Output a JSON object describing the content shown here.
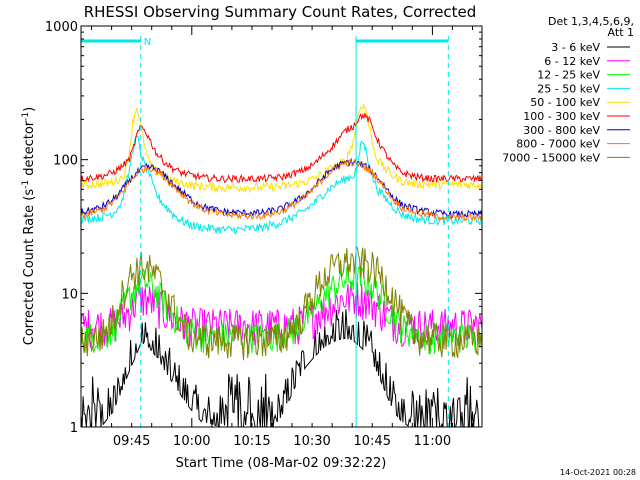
{
  "chart_data": {
    "type": "line",
    "title": "RHESSI Observing Summary Count Rates, Corrected",
    "xlabel": "Start Time (08-Mar-02 09:32:22)",
    "ylabel_main": "Corrected Count Rate (s",
    "ylabel_sup1": "-1",
    "ylabel_mid": " detector",
    "ylabel_sup2": "-1",
    "ylabel_end": ")",
    "x_range_minutes": [
      0,
      100
    ],
    "ylim": [
      1,
      1000
    ],
    "yscale": "log",
    "xticks": [
      {
        "minute": 12.63,
        "label": "09:45"
      },
      {
        "minute": 27.63,
        "label": "10:00"
      },
      {
        "minute": 42.63,
        "label": "10:15"
      },
      {
        "minute": 57.63,
        "label": "10:30"
      },
      {
        "minute": 72.63,
        "label": "10:45"
      },
      {
        "minute": 87.63,
        "label": "11:00"
      }
    ],
    "yticks": [
      {
        "value": 1,
        "label": "1"
      },
      {
        "value": 10,
        "label": "10"
      },
      {
        "value": 100,
        "label": "100"
      },
      {
        "value": 1000,
        "label": "1000"
      }
    ],
    "legend_header": [
      "Det 1,3,4,5,6,9,",
      "Att 1"
    ],
    "legend_position": "right",
    "series": [
      {
        "name": "3 - 6 keV",
        "color": "#000000",
        "x": [
          0,
          5,
          8,
          10,
          12,
          14,
          15,
          17,
          19,
          21,
          24,
          27,
          30,
          35,
          40,
          45,
          48,
          50,
          52,
          54,
          56,
          58,
          60,
          62,
          64,
          66,
          68,
          70,
          72,
          74,
          76,
          78,
          80,
          82,
          84,
          86,
          88,
          90,
          92,
          96,
          100
        ],
        "y": [
          1,
          1,
          1.3,
          1.8,
          2.6,
          3.6,
          4.3,
          3.9,
          3.3,
          2.6,
          1.9,
          1.4,
          1.1,
          1,
          1,
          1,
          1,
          1.2,
          1.6,
          2.2,
          2.8,
          3.3,
          3.8,
          4.2,
          4.5,
          4.6,
          4.4,
          3.9,
          3.3,
          2.5,
          1.8,
          1.3,
          1.1,
          1,
          1,
          1,
          1,
          1,
          1,
          1,
          1
        ]
      },
      {
        "name": "6 - 12 keV",
        "color": "#ff00ff",
        "x": [
          0,
          8,
          10,
          12,
          14,
          15,
          17,
          19,
          21,
          24,
          27,
          30,
          35,
          40,
          45,
          50,
          54,
          58,
          60,
          62,
          64,
          66,
          68,
          70,
          72,
          74,
          76,
          78,
          80,
          84,
          88,
          92,
          96,
          100
        ],
        "y": [
          5.8,
          5.9,
          6.4,
          7.5,
          8.8,
          9.3,
          9,
          8.2,
          7.2,
          6.3,
          5.9,
          5.8,
          5.8,
          5.8,
          5.8,
          5.8,
          6,
          6.8,
          7.4,
          8.1,
          8.8,
          9.3,
          9.5,
          9.4,
          8.8,
          7.9,
          7,
          6.3,
          6,
          5.8,
          5.8,
          5.8,
          5.8,
          5.8
        ]
      },
      {
        "name": "12 - 25 keV",
        "color": "#00ff00",
        "x": [
          0,
          6,
          8,
          10,
          12,
          14,
          15,
          17,
          19,
          21,
          24,
          27,
          30,
          35,
          40,
          45,
          50,
          54,
          58,
          60,
          62,
          64,
          66,
          68,
          70,
          72,
          74,
          76,
          78,
          80,
          84,
          88,
          92,
          96,
          100
        ],
        "y": [
          4.8,
          4.9,
          5.6,
          7.2,
          9.5,
          11.5,
          12.3,
          11.8,
          10.2,
          8.4,
          6.4,
          5.3,
          4.9,
          4.8,
          4.8,
          4.8,
          4.9,
          5.6,
          7.4,
          9,
          10.6,
          11.8,
          12.6,
          13,
          12.8,
          11.9,
          10.3,
          8.4,
          6.8,
          5.6,
          4.9,
          4.8,
          4.8,
          4.8,
          4.8
        ]
      },
      {
        "name": "25 - 50 keV",
        "color": "#00e8e8",
        "x": [
          0,
          5,
          8,
          10,
          11,
          12,
          13,
          14,
          15,
          16,
          17,
          18,
          19,
          21,
          23,
          25,
          28,
          31,
          35,
          40,
          45,
          50,
          55,
          58,
          60,
          62,
          64,
          66,
          68,
          69,
          70,
          71,
          72,
          73,
          74,
          76,
          78,
          80,
          84,
          88,
          92,
          96,
          100
        ],
        "y": [
          36,
          37,
          40,
          47,
          60,
          80,
          125,
          150,
          110,
          88,
          80,
          62,
          54,
          45,
          39,
          35,
          32,
          31,
          30,
          30,
          31,
          34,
          40,
          47,
          54,
          61,
          67,
          72,
          76,
          90,
          140,
          120,
          88,
          70,
          60,
          51,
          44,
          39,
          36,
          35,
          35,
          35,
          35
        ]
      },
      {
        "name": "50 - 100 keV",
        "color": "#ffe000",
        "x": [
          0,
          5,
          8,
          10,
          11,
          12,
          13,
          14,
          15,
          16,
          17,
          18,
          19,
          21,
          23,
          25,
          28,
          31,
          35,
          40,
          45,
          50,
          55,
          58,
          60,
          62,
          64,
          66,
          68,
          69,
          70,
          71,
          72,
          73,
          74,
          76,
          78,
          80,
          84,
          88,
          92,
          96,
          100
        ],
        "y": [
          65,
          66,
          68,
          73,
          80,
          110,
          200,
          250,
          170,
          120,
          95,
          85,
          80,
          74,
          70,
          67,
          64,
          63,
          62,
          62,
          62,
          63,
          67,
          72,
          78,
          85,
          92,
          98,
          140,
          210,
          260,
          240,
          170,
          120,
          100,
          85,
          75,
          69,
          66,
          65,
          65,
          65,
          65
        ]
      },
      {
        "name": "100 - 300 keV",
        "color": "#ff0000",
        "x": [
          0,
          5,
          8,
          10,
          12,
          13,
          14,
          15,
          16,
          17,
          18,
          19,
          21,
          23,
          25,
          28,
          31,
          35,
          40,
          45,
          50,
          55,
          58,
          60,
          62,
          64,
          66,
          68,
          69,
          70,
          71,
          72,
          73,
          74,
          76,
          78,
          80,
          84,
          88,
          92,
          96,
          100
        ],
        "y": [
          72,
          75,
          80,
          88,
          100,
          120,
          155,
          175,
          165,
          145,
          125,
          110,
          95,
          86,
          80,
          76,
          73,
          72,
          72,
          72,
          74,
          82,
          92,
          105,
          120,
          140,
          165,
          180,
          200,
          215,
          210,
          195,
          165,
          140,
          110,
          90,
          80,
          74,
          72,
          72,
          72,
          72
        ]
      },
      {
        "name": "300 - 800 keV",
        "color": "#0000cc",
        "x": [
          0,
          5,
          8,
          10,
          12,
          14,
          16,
          18,
          20,
          22,
          25,
          28,
          31,
          35,
          40,
          45,
          50,
          55,
          58,
          60,
          62,
          64,
          66,
          68,
          70,
          72,
          74,
          76,
          78,
          80,
          84,
          88,
          92,
          96,
          100
        ],
        "y": [
          40,
          44,
          50,
          58,
          70,
          80,
          88,
          87,
          80,
          70,
          58,
          49,
          44,
          41,
          40,
          40,
          43,
          52,
          62,
          72,
          82,
          90,
          95,
          96,
          92,
          85,
          74,
          62,
          52,
          46,
          42,
          40,
          39,
          39,
          39
        ]
      },
      {
        "name": "800 - 7000 keV",
        "color": "#ff7700",
        "x": [
          0,
          5,
          8,
          10,
          12,
          14,
          16,
          18,
          20,
          22,
          25,
          28,
          31,
          35,
          40,
          45,
          50,
          55,
          58,
          60,
          62,
          64,
          66,
          68,
          70,
          72,
          74,
          76,
          78,
          80,
          84,
          88,
          92,
          96,
          100
        ],
        "y": [
          38,
          42,
          48,
          56,
          68,
          79,
          87,
          86,
          78,
          68,
          56,
          47,
          42,
          39,
          38,
          38,
          41,
          50,
          60,
          70,
          80,
          89,
          94,
          95,
          91,
          83,
          72,
          60,
          50,
          44,
          40,
          38,
          37,
          37,
          37
        ]
      },
      {
        "name": "7000 - 15000 keV",
        "color": "#808000",
        "x": [
          0,
          5,
          8,
          10,
          12,
          14,
          15,
          17,
          19,
          21,
          23,
          25,
          27,
          30,
          35,
          40,
          45,
          50,
          54,
          56,
          58,
          60,
          62,
          64,
          66,
          68,
          70,
          72,
          74,
          76,
          78,
          80,
          82,
          84,
          88,
          92,
          96,
          100
        ],
        "y": [
          4.5,
          4.8,
          6.5,
          9.5,
          13,
          15.5,
          16,
          15.2,
          13.2,
          10.5,
          7.8,
          5.9,
          5,
          4.6,
          4.5,
          4.5,
          4.5,
          4.7,
          6,
          7.8,
          10,
          12.5,
          14.8,
          16.3,
          17.2,
          17.5,
          17.2,
          16.3,
          14.5,
          12,
          9.3,
          7,
          5.6,
          4.9,
          4.6,
          4.5,
          4.5,
          4.5
        ]
      }
    ],
    "vertical_markers": [
      {
        "type": "dashed",
        "minute": 14.9,
        "color": "#00e8e8"
      },
      {
        "type": "solid",
        "minute": 68.6,
        "color": "#00e8e8"
      },
      {
        "type": "dashed",
        "minute": 91.6,
        "color": "#00e8e8"
      }
    ],
    "top_bars": [
      {
        "from": 0,
        "to": 14.9,
        "color": "#00e8e8",
        "label": "N"
      },
      {
        "from": 68.6,
        "to": 91.6,
        "color": "#00e8e8",
        "label": ""
      }
    ]
  },
  "footer_date": "14-Oct-2021 00:28"
}
